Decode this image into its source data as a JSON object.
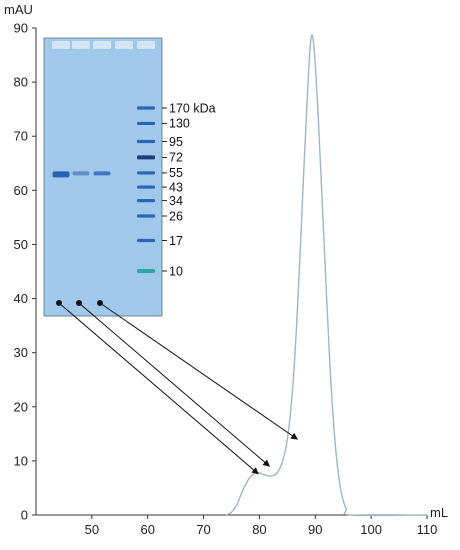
{
  "chart_data": {
    "type": "line",
    "title": "",
    "xlabel": "mL",
    "ylabel": "mAU",
    "xlim": [
      40,
      110
    ],
    "ylim": [
      0,
      90
    ],
    "x_ticks": [
      50,
      60,
      70,
      80,
      90,
      100,
      110
    ],
    "y_ticks": [
      0,
      10,
      20,
      30,
      40,
      50,
      60,
      70,
      80,
      90
    ],
    "grid": false,
    "series": [
      {
        "color": "#9fb6c4",
        "points": [
          [
            74,
            0
          ],
          [
            75,
            0.5
          ],
          [
            76,
            2
          ],
          [
            77,
            4.5
          ],
          [
            78,
            6.5
          ],
          [
            79,
            7.6
          ],
          [
            80,
            7.8
          ],
          [
            81,
            7.4
          ],
          [
            82,
            7.2
          ],
          [
            83,
            7.6
          ],
          [
            84,
            9.5
          ],
          [
            85,
            14
          ],
          [
            86,
            24
          ],
          [
            87,
            42
          ],
          [
            88,
            65
          ],
          [
            88.8,
            82
          ],
          [
            89.3,
            88.5
          ],
          [
            89.8,
            86
          ],
          [
            90.5,
            74
          ],
          [
            91.5,
            52
          ],
          [
            92.5,
            30
          ],
          [
            93.5,
            14
          ],
          [
            94.5,
            5
          ],
          [
            95.5,
            1.2
          ],
          [
            96.5,
            0
          ],
          [
            110,
            0
          ]
        ]
      }
    ],
    "fraction_arrows": [
      {
        "target": [
          79.8,
          7.6
        ]
      },
      {
        "target": [
          81.8,
          9.0
        ]
      },
      {
        "target": [
          86.8,
          14.0
        ]
      }
    ],
    "gel_inset": {
      "ladder_labels": [
        "170 kDa",
        "130",
        "95",
        "72",
        "55",
        "43",
        "34",
        "26",
        "17",
        "10"
      ],
      "ladder_kda": [
        170,
        130,
        95,
        72,
        55,
        43,
        34,
        26,
        17,
        10
      ],
      "sample_band_kda": 55,
      "colors": {
        "gel_background": "#9fc8ea",
        "band": "#2a62b3",
        "ladder": "#2b63b8",
        "ladder_72": "#1b3f7a",
        "ladder_10": "#2aa7a0"
      }
    }
  }
}
